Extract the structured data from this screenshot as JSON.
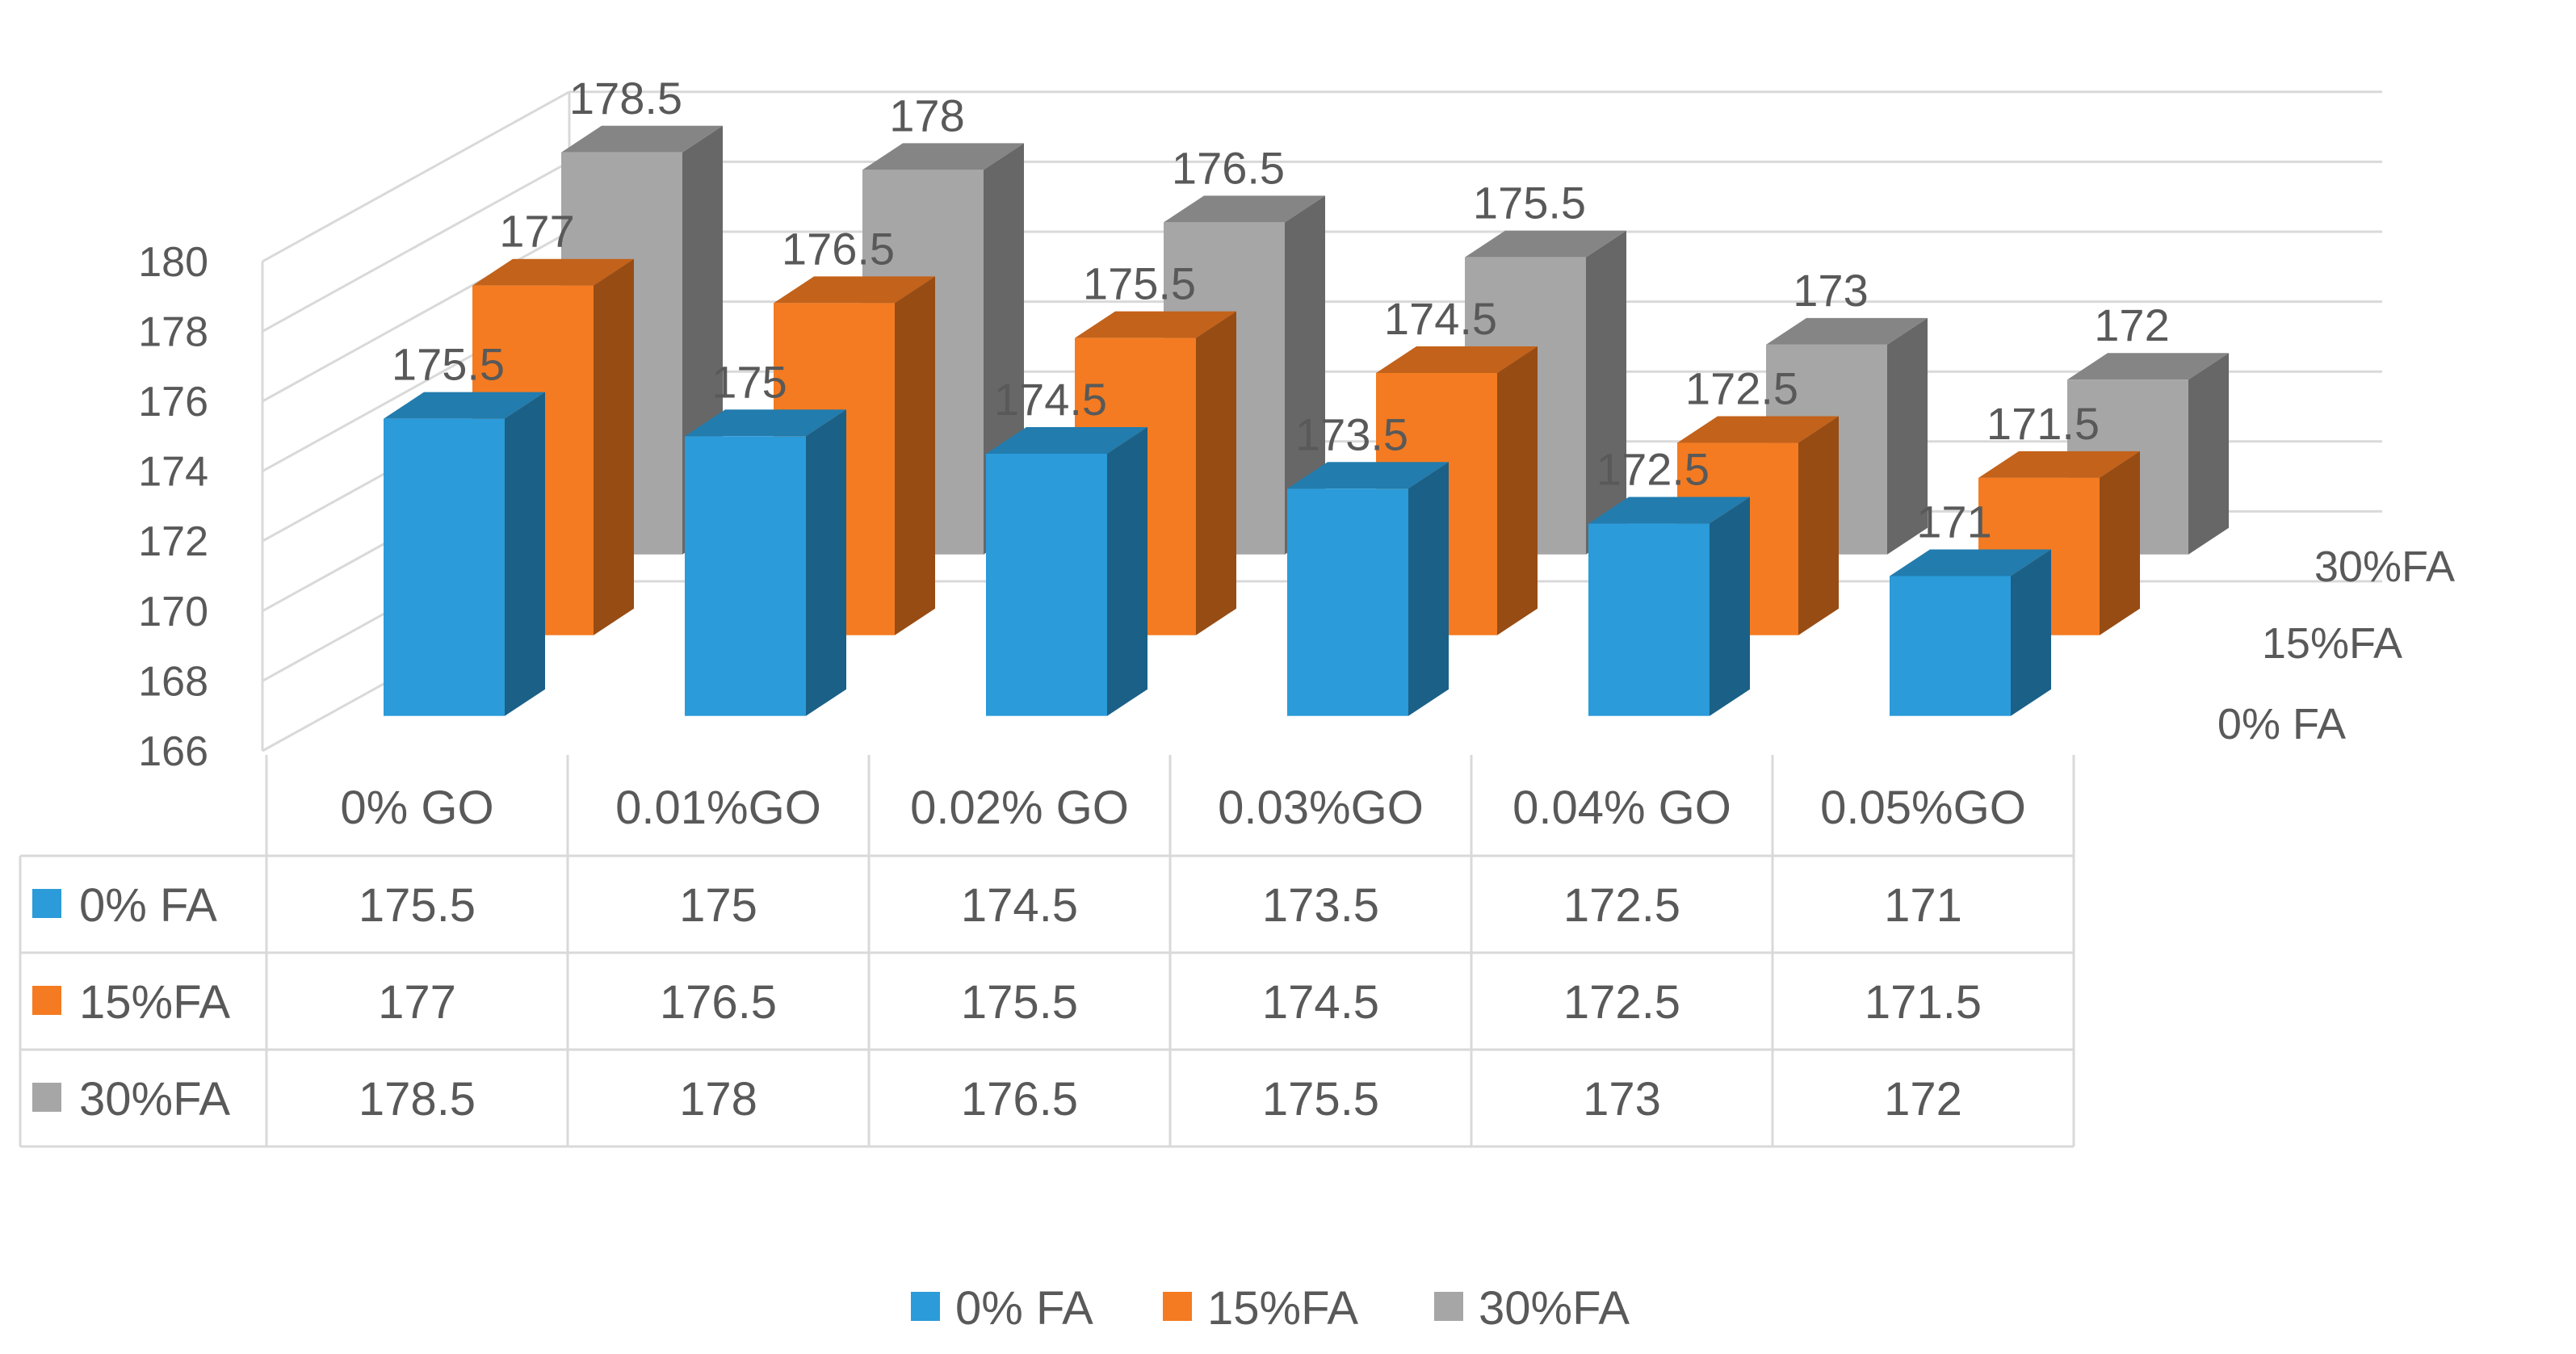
{
  "chart_data": {
    "type": "bar",
    "style": "3d-clustered-column-with-data-table",
    "categories": [
      "0% GO",
      "0.01%GO",
      "0.02% GO",
      "0.03%GO",
      "0.04% GO",
      "0.05%GO"
    ],
    "series": [
      {
        "name": "0% FA",
        "color": "#2b9bd9",
        "values": [
          175.5,
          175,
          174.5,
          173.5,
          172.5,
          171
        ]
      },
      {
        "name": "15%FA",
        "color": "#f47b21",
        "values": [
          177,
          176.5,
          175.5,
          174.5,
          172.5,
          171.5
        ]
      },
      {
        "name": "30%FA",
        "color": "#a6a6a6",
        "values": [
          178.5,
          178,
          176.5,
          175.5,
          173,
          172
        ]
      }
    ],
    "depth_labels": [
      "0% FA",
      "15%FA",
      "30%FA"
    ],
    "y_ticks": [
      166,
      168,
      170,
      172,
      174,
      176,
      178,
      180
    ],
    "ylim": [
      166,
      180
    ],
    "title": "",
    "xlabel": "",
    "ylabel": "",
    "legend_position": "bottom",
    "grid": true,
    "data_table": true
  }
}
